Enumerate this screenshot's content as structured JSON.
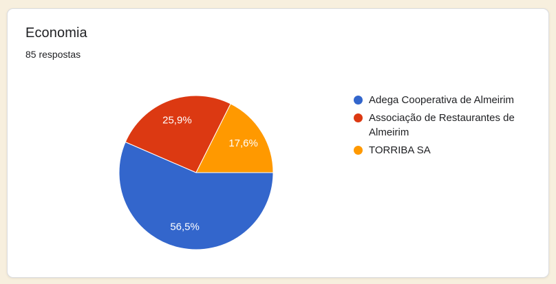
{
  "page": {
    "background_color": "#F7EFDE",
    "card_border_color": "#DADCE0",
    "text_color": "#202124"
  },
  "card": {
    "title": "Economia",
    "subtitle": "85 respostas"
  },
  "chart_data": {
    "type": "pie",
    "title": "Economia",
    "categories": [
      "Adega Cooperativa de Almeirim",
      "Associação de Restaurantes de Almeirim",
      "TORRIBA SA"
    ],
    "values": [
      56.5,
      25.9,
      17.6
    ],
    "slice_labels": [
      "56,5%",
      "25,9%",
      "17,6%"
    ],
    "colors": [
      "#3366CC",
      "#DC3912",
      "#FF9900"
    ],
    "start_angle_deg": 0,
    "direction": "clockwise",
    "legend_position": "right",
    "slice_label_color": "#FFFFFF",
    "slice_stroke_color": "#FFFFFF"
  }
}
